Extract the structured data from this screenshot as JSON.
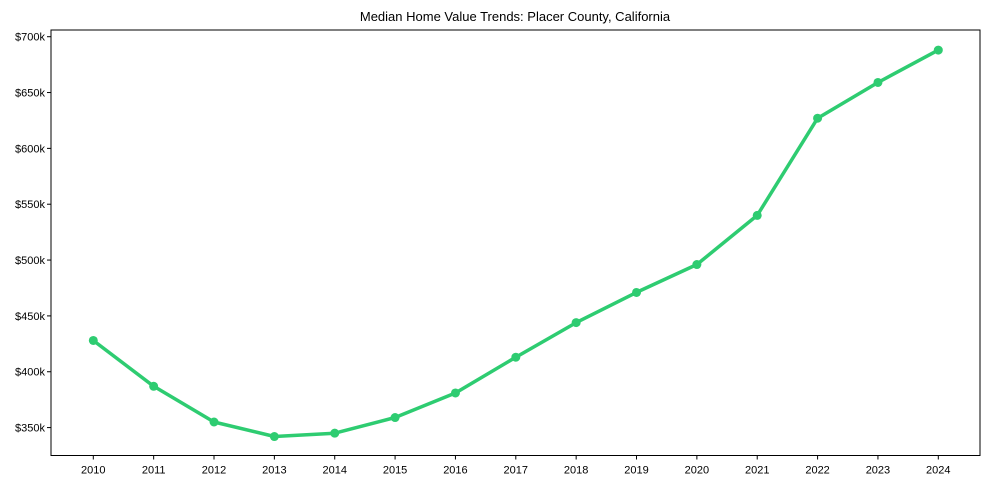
{
  "chart_data": {
    "type": "line",
    "title": "Median Home Value Trends: Placer County, California",
    "xlabel": "",
    "ylabel": "",
    "categories": [
      "2010",
      "2011",
      "2012",
      "2013",
      "2014",
      "2015",
      "2016",
      "2017",
      "2018",
      "2019",
      "2020",
      "2021",
      "2022",
      "2023",
      "2024"
    ],
    "series": [
      {
        "name": "Median Home Value",
        "color": "#2ecc71",
        "values": [
          428000,
          387000,
          355000,
          342000,
          345000,
          359000,
          381000,
          413000,
          444000,
          471000,
          496000,
          540000,
          627000,
          659000,
          688000
        ]
      }
    ],
    "ylim": [
      325000,
      706000
    ],
    "yticks": [
      350000,
      400000,
      450000,
      500000,
      550000,
      600000,
      650000,
      700000
    ],
    "ytick_labels": [
      "$350k",
      "$400k",
      "$450k",
      "$500k",
      "$550k",
      "$600k",
      "$650k",
      "$700k"
    ],
    "grid": false,
    "legend": null,
    "markers": true
  }
}
